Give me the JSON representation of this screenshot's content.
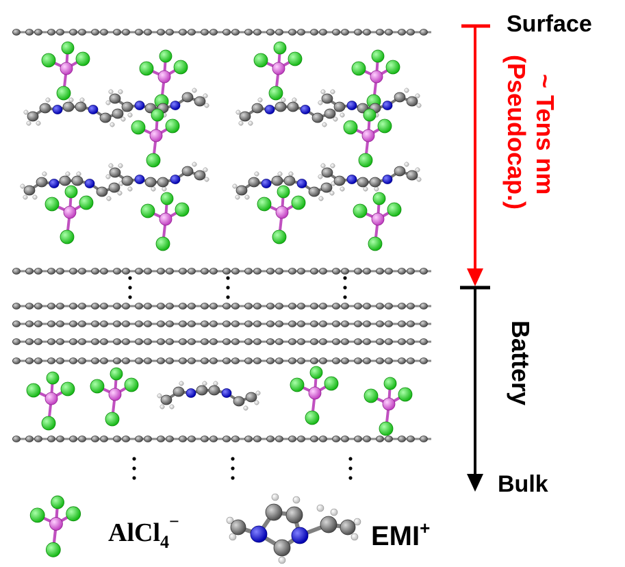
{
  "labels": {
    "surface": "Surface",
    "bulk": "Bulk",
    "pseudocap_line1": "~ Tens nm",
    "pseudocap_line2": "(Pseudocap.)",
    "battery": "Battery"
  },
  "legend": {
    "alcl4_base": "AlCl",
    "alcl4_sub": "4",
    "alcl4_sup": "−",
    "emi_base": "EMI",
    "emi_sup": "+"
  },
  "colors": {
    "surface_arrow": "#ff0000",
    "bulk_arrow": "#000000",
    "pseudocap_text": "#ff0000",
    "graphene": "#7a7a7a",
    "carbon_atom": "#6e6e6e",
    "aluminum": "#e070e0",
    "chlorine": "#22dd22",
    "nitrogen": "#1a1ad0",
    "hydrogen": "#f2f2f2"
  }
}
